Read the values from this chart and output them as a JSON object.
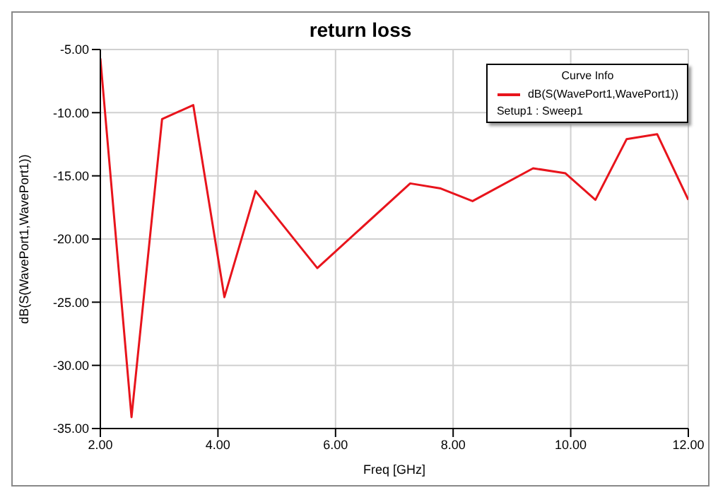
{
  "chart_data": {
    "type": "line",
    "title": "return loss",
    "xlabel": "Freq [GHz]",
    "ylabel": "dB(S(WavePort1,WavePort1))",
    "legend_title": "Curve Info",
    "annotations": [
      "Setup1 : Sweep1"
    ],
    "x": [
      2.0,
      2.53,
      3.05,
      3.58,
      4.11,
      4.64,
      5.69,
      7.27,
      7.79,
      8.33,
      9.36,
      9.91,
      10.42,
      10.95,
      11.47,
      12.0
    ],
    "series": [
      {
        "name": "dB(S(WavePort1,WavePort1))",
        "color": "#e8141c",
        "values": [
          -5.7,
          -34.1,
          -10.5,
          -9.4,
          -24.6,
          -16.2,
          -22.3,
          -15.6,
          -16.0,
          -17.0,
          -14.4,
          -14.8,
          -16.9,
          -12.1,
          -11.7,
          -16.9
        ]
      }
    ],
    "xlim": [
      2,
      12
    ],
    "xticks": [
      {
        "value": 2,
        "label": "2.00"
      },
      {
        "value": 4,
        "label": "4.00"
      },
      {
        "value": 6,
        "label": "6.00"
      },
      {
        "value": 8,
        "label": "8.00"
      },
      {
        "value": 10,
        "label": "10.00"
      },
      {
        "value": 12,
        "label": "12.00"
      }
    ],
    "ylim": [
      -35,
      -5
    ],
    "yticks": [
      {
        "value": -35,
        "label": "-35.00"
      },
      {
        "value": -30,
        "label": "-30.00"
      },
      {
        "value": -25,
        "label": "-25.00"
      },
      {
        "value": -20,
        "label": "-20.00"
      },
      {
        "value": -15,
        "label": "-15.00"
      },
      {
        "value": -10,
        "label": "-10.00"
      },
      {
        "value": -5,
        "label": "-5.00"
      }
    ],
    "grid": true,
    "legend": "top right",
    "marker": "none",
    "line_style": "solid"
  }
}
